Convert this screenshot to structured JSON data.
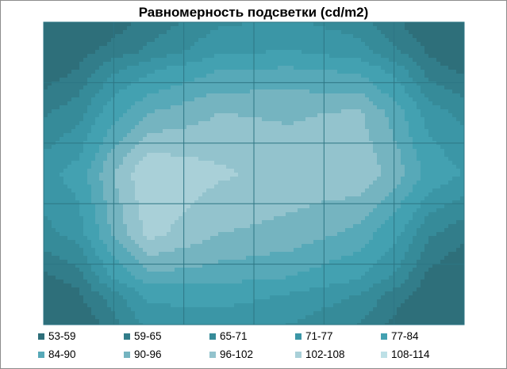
{
  "chart_data": {
    "type": "heatmap",
    "title": "Равномерность подсветки (cd/m2)",
    "xlabel": "",
    "ylabel": "",
    "grid": true,
    "legend_position": "bottom",
    "x": [
      1,
      2,
      3,
      4,
      5,
      6
    ],
    "y": [
      1,
      2,
      3,
      4,
      5
    ],
    "z": [
      [
        60,
        70,
        79,
        81,
        77,
        62
      ],
      [
        73,
        90,
        96,
        95,
        97,
        78
      ],
      [
        84,
        108,
        103,
        100,
        101,
        86
      ],
      [
        78,
        104,
        96,
        94,
        88,
        70
      ],
      [
        62,
        82,
        83,
        80,
        74,
        58
      ]
    ],
    "bins": [
      {
        "label": "53-59",
        "min": 53,
        "max": 59,
        "color": "#2e6f7a"
      },
      {
        "label": "59-65",
        "min": 59,
        "max": 65,
        "color": "#327d8a"
      },
      {
        "label": "65-71",
        "min": 65,
        "max": 71,
        "color": "#368b99"
      },
      {
        "label": "71-77",
        "min": 71,
        "max": 77,
        "color": "#3b96a6"
      },
      {
        "label": "77-84",
        "min": 77,
        "max": 84,
        "color": "#43a1b1"
      },
      {
        "label": "84-90",
        "min": 84,
        "max": 90,
        "color": "#57a9b8"
      },
      {
        "label": "90-96",
        "min": 90,
        "max": 96,
        "color": "#75b4c0"
      },
      {
        "label": "96-102",
        "min": 96,
        "max": 102,
        "color": "#93c3cd"
      },
      {
        "label": "102-108",
        "min": 102,
        "max": 108,
        "color": "#a9d0d8"
      },
      {
        "label": "108-114",
        "min": 108,
        "max": 114,
        "color": "#bde0e6"
      }
    ]
  }
}
